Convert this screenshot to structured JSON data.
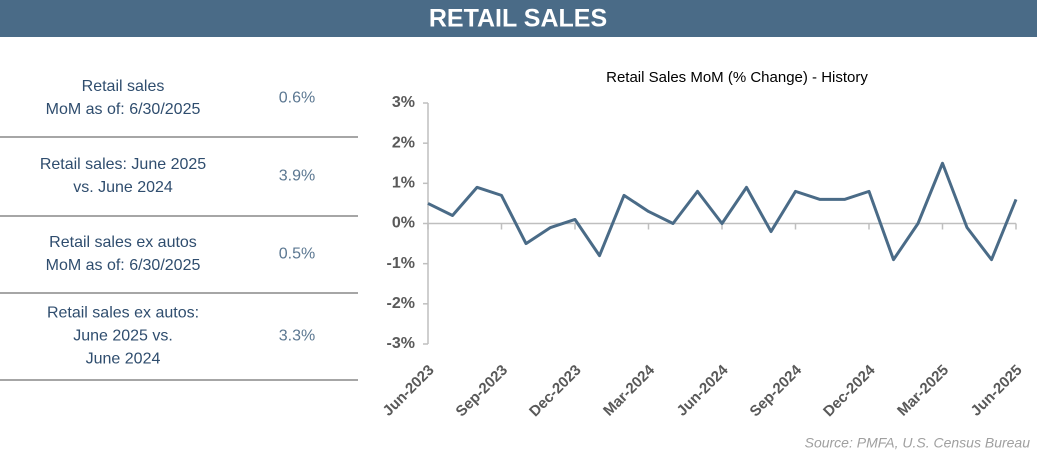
{
  "header": {
    "title": "RETAIL SALES"
  },
  "table": {
    "rows": [
      {
        "label": [
          "Retail sales",
          "MoM as of: 6/30/2025"
        ],
        "value": "0.6%"
      },
      {
        "label": [
          "Retail sales: June 2025",
          "vs. June 2024"
        ],
        "value": "3.9%"
      },
      {
        "label": [
          "Retail sales ex autos",
          "MoM as of: 6/30/2025"
        ],
        "value": "0.5%"
      },
      {
        "label": [
          "Retail sales ex autos:",
          "June 2025 vs.",
          "June 2024"
        ],
        "value": "3.3%"
      }
    ]
  },
  "chart_data": {
    "type": "line",
    "title": "Retail Sales MoM (% Change) - History",
    "categories": [
      "Jun-2023",
      null,
      null,
      "Sep-2023",
      null,
      null,
      "Dec-2023",
      null,
      null,
      "Mar-2024",
      null,
      null,
      "Jun-2024",
      null,
      null,
      "Sep-2024",
      null,
      null,
      "Dec-2024",
      null,
      null,
      "Mar-2025",
      null,
      null,
      "Jun-2025"
    ],
    "values": [
      0.5,
      0.2,
      0.9,
      0.7,
      -0.5,
      -0.1,
      0.1,
      -0.8,
      0.7,
      0.3,
      0.0,
      0.8,
      0.0,
      0.9,
      -0.2,
      0.8,
      0.6,
      0.6,
      0.8,
      -0.9,
      0.0,
      1.5,
      -0.1,
      -0.9,
      0.6
    ],
    "color": "#4a6b87",
    "ylim": [
      -3,
      3
    ],
    "yticks": [
      {
        "value": -3,
        "label": "-3%"
      },
      {
        "value": -2,
        "label": "-2%"
      },
      {
        "value": -1,
        "label": "-1%"
      },
      {
        "value": 0,
        "label": "0%"
      },
      {
        "value": 1,
        "label": "1%"
      },
      {
        "value": 2,
        "label": "2%"
      },
      {
        "value": 3,
        "label": "3%"
      }
    ]
  },
  "source": "Source: PMFA, U.S. Census Bureau"
}
